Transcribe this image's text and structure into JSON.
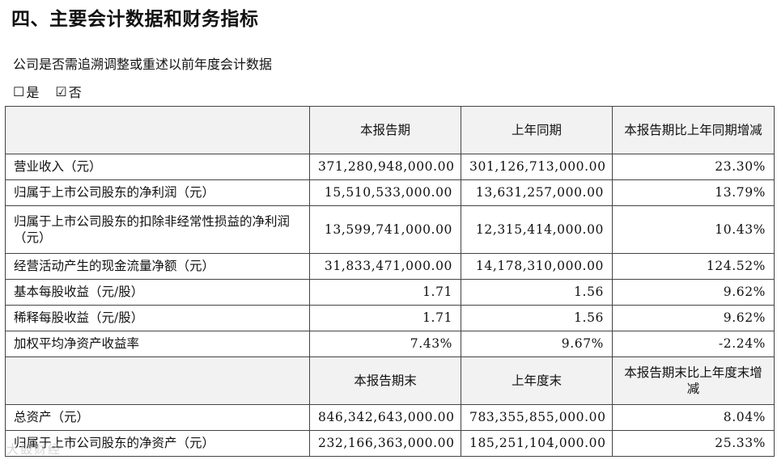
{
  "section": {
    "title": "四、主要会计数据和财务指标"
  },
  "question": "公司是否需追溯调整或重述以前年度会计数据",
  "answers": {
    "yes": {
      "box": "☐",
      "label": "是"
    },
    "no": {
      "box": "☑",
      "label": "否"
    }
  },
  "table": {
    "header1": {
      "c2": "本报告期",
      "c3": "上年同期",
      "c4": "本报告期比上年同期增减"
    },
    "rows1": [
      {
        "label": "营业收入（元）",
        "current": "371,280,948,000.00",
        "prior": "301,126,713,000.00",
        "change": "23.30%"
      },
      {
        "label": "归属于上市公司股东的净利润（元）",
        "current": "15,510,533,000.00",
        "prior": "13,631,257,000.00",
        "change": "13.79%"
      },
      {
        "label": "归属于上市公司股东的扣除非经常性损益的净利润（元）",
        "current": "13,599,741,000.00",
        "prior": "12,315,414,000.00",
        "change": "10.43%"
      },
      {
        "label": "经营活动产生的现金流量净额（元）",
        "current": "31,833,471,000.00",
        "prior": "14,178,310,000.00",
        "change": "124.52%"
      },
      {
        "label": "基本每股收益（元/股）",
        "current": "1.71",
        "prior": "1.56",
        "change": "9.62%"
      },
      {
        "label": "稀释每股收益（元/股）",
        "current": "1.71",
        "prior": "1.56",
        "change": "9.62%"
      },
      {
        "label": "加权平均净资产收益率",
        "current": "7.43%",
        "prior": "9.67%",
        "change": "-2.24%"
      }
    ],
    "header2": {
      "c2": "本报告期末",
      "c3": "上年度末",
      "c4": "本报告期末比上年度末增减"
    },
    "rows2": [
      {
        "label": "总资产（元）",
        "current": "846,342,643,000.00",
        "prior": "783,355,855,000.00",
        "change": "8.04%"
      },
      {
        "label": "归属于上市公司股东的净资产（元）",
        "current": "232,166,363,000.00",
        "prior": "185,251,104,000.00",
        "change": "25.33%"
      }
    ]
  },
  "watermark": "大鼓财经"
}
